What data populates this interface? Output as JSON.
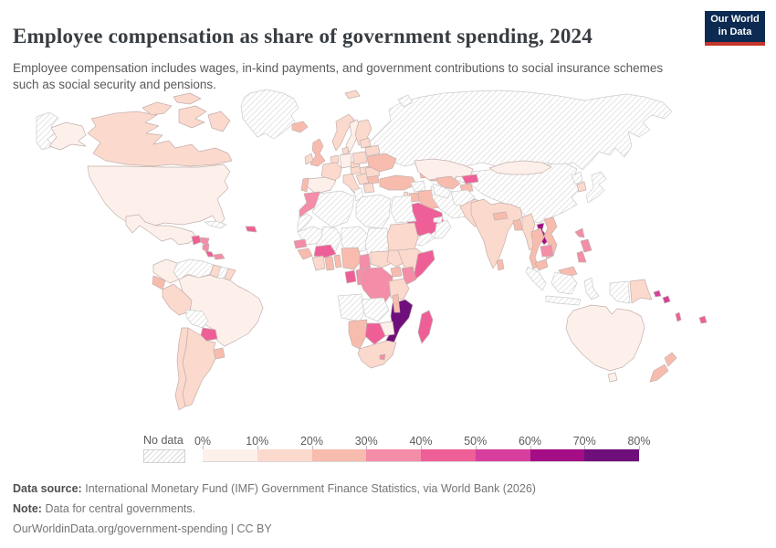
{
  "header": {
    "title": "Employee compensation as share of government spending, 2024",
    "subtitle": "Employee compensation includes wages, in-kind payments, and government contributions to social insurance schemes such as social security and pensions."
  },
  "logo": {
    "line1": "Our World",
    "line2": "in Data"
  },
  "legend": {
    "no_data_label": "No data",
    "ticks": [
      "0%",
      "10%",
      "20%",
      "30%",
      "40%",
      "50%",
      "60%",
      "70%",
      "80%"
    ]
  },
  "footer": {
    "source_label": "Data source:",
    "source_text": "International Monetary Fund (IMF) Government Finance Statistics, via World Bank (2026)",
    "note_label": "Note:",
    "note_text": "Data for central governments.",
    "link_text": "OurWorldinData.org/government-spending | CC BY"
  },
  "chart_data": {
    "type": "choropleth",
    "title": "Employee compensation as share of government spending",
    "time": "2024",
    "unit": "% of government spending",
    "no_data_label": "No data",
    "no_data_style": "diagonal-hatch",
    "legend_bins": [
      {
        "label": "0-10%",
        "color": "#fdf0ea"
      },
      {
        "label": "10-20%",
        "color": "#fbd9cd"
      },
      {
        "label": "20-30%",
        "color": "#f8bcae"
      },
      {
        "label": "30-40%",
        "color": "#f48da8"
      },
      {
        "label": "40-50%",
        "color": "#ee5f97"
      },
      {
        "label": "50-60%",
        "color": "#d63f9d"
      },
      {
        "label": "60-70%",
        "color": "#a50d87"
      },
      {
        "label": "70-80%",
        "color": "#6f0f7b"
      }
    ],
    "countries": {
      "United States": "0-10%",
      "Mexico": "0-10%",
      "Colombia": "0-10%",
      "Brazil": "0-10%",
      "Kazakhstan": "0-10%",
      "Mongolia": "0-10%",
      "Australia": "0-10%",
      "Sweden": "0-10%",
      "Germany": "0-10%",
      "Spain": "0-10%",
      "Zimbabwe": "0-10%",
      "Canada": "10-20%",
      "Peru": "10-20%",
      "Guyana": "10-20%",
      "French Guiana": "10-20%",
      "Argentina": "10-20%",
      "Chile": "10-20%",
      "Norway": "10-20%",
      "Finland": "10-20%",
      "Denmark": "10-20%",
      "Ireland": "10-20%",
      "France": "10-20%",
      "Italy": "10-20%",
      "Czechia": "10-20%",
      "Austria": "10-20%",
      "Poland": "10-20%",
      "Hungary": "10-20%",
      "Serbia": "10-20%",
      "Greece": "10-20%",
      "Romania": "10-20%",
      "Belarus": "10-20%",
      "Lithuania": "10-20%",
      "Netherlands": "10-20%",
      "Israel": "10-20%",
      "Sudan": "10-20%",
      "Cote d'Ivoire": "10-20%",
      "Central African Republic": "10-20%",
      "South Sudan": "10-20%",
      "Ethiopia": "10-20%",
      "Tanzania": "10-20%",
      "South Africa": "10-20%",
      "Pakistan": "10-20%",
      "India": "10-20%",
      "Myanmar": "10-20%",
      "South Korea": "10-20%",
      "Papua New Guinea": "10-20%",
      "Iceland": "20-30%",
      "United Kingdom": "20-30%",
      "Portugal": "20-30%",
      "Ukraine": "20-30%",
      "Bulgaria": "20-30%",
      "Turkey": "20-30%",
      "Georgia": "20-30%",
      "Azerbaijan": "20-30%",
      "Iraq": "20-30%",
      "Jordan": "20-30%",
      "Uzbekistan": "20-30%",
      "Tajikistan": "20-30%",
      "Nepal": "20-30%",
      "Bangladesh": "20-30%",
      "Sri Lanka": "20-30%",
      "Thailand": "20-30%",
      "Vietnam": "20-30%",
      "Malaysia": "20-30%",
      "New Zealand": "20-30%",
      "Guinea": "20-30%",
      "Ghana": "20-30%",
      "Togo": "20-30%",
      "Nigeria": "20-30%",
      "Uganda": "20-30%",
      "Malawi": "20-30%",
      "Namibia": "20-30%",
      "Ecuador": "20-30%",
      "Uruguay": "20-30%",
      "Morocco": "30-40%",
      "Senegal": "30-40%",
      "Cameroon": "30-40%",
      "Congo": "30-40%",
      "Democratic Republic of Congo": "30-40%",
      "Kenya": "30-40%",
      "Philippines": "30-40%",
      "Cambodia": "30-40%",
      "Honduras": "30-40%",
      "Nicaragua": "30-40%",
      "Panama": "30-40%",
      "Lesotho": "30-40%",
      "Guatemala": "40-50%",
      "Costa Rica": "40-50%",
      "Dominican Republic": "40-50%",
      "Paraguay": "40-50%",
      "Burkina Faso": "40-50%",
      "Gabon": "40-50%",
      "Somalia": "40-50%",
      "Botswana": "40-50%",
      "Madagascar": "40-50%",
      "Saudi Arabia": "40-50%",
      "Kyrgyzstan": "40-50%",
      "Vanuatu": "40-50%",
      "Fiji": "40-50%",
      "Solomon Islands": "50-60%",
      "Laos": "60-70%",
      "Mozambique": "70-80%",
      "Greenland": "No data",
      "Cuba": "No data",
      "Venezuela": "No data",
      "Suriname": "No data",
      "Bolivia": "No data",
      "Russia": "No data",
      "China": "No data",
      "Japan": "No data",
      "North Korea": "No data",
      "Indonesia": "No data",
      "Iran": "No data",
      "Afghanistan": "No data",
      "Turkmenistan": "No data",
      "Syria": "No data",
      "Yemen": "No data",
      "Oman": "No data",
      "United Arab Emirates": "No data",
      "Algeria": "No data",
      "Tunisia": "No data",
      "Libya": "No data",
      "Egypt": "No data",
      "Western Sahara": "No data",
      "Mauritania": "No data",
      "Mali": "No data",
      "Niger": "No data",
      "Chad": "No data",
      "Angola": "No data",
      "Zambia": "No data"
    }
  }
}
